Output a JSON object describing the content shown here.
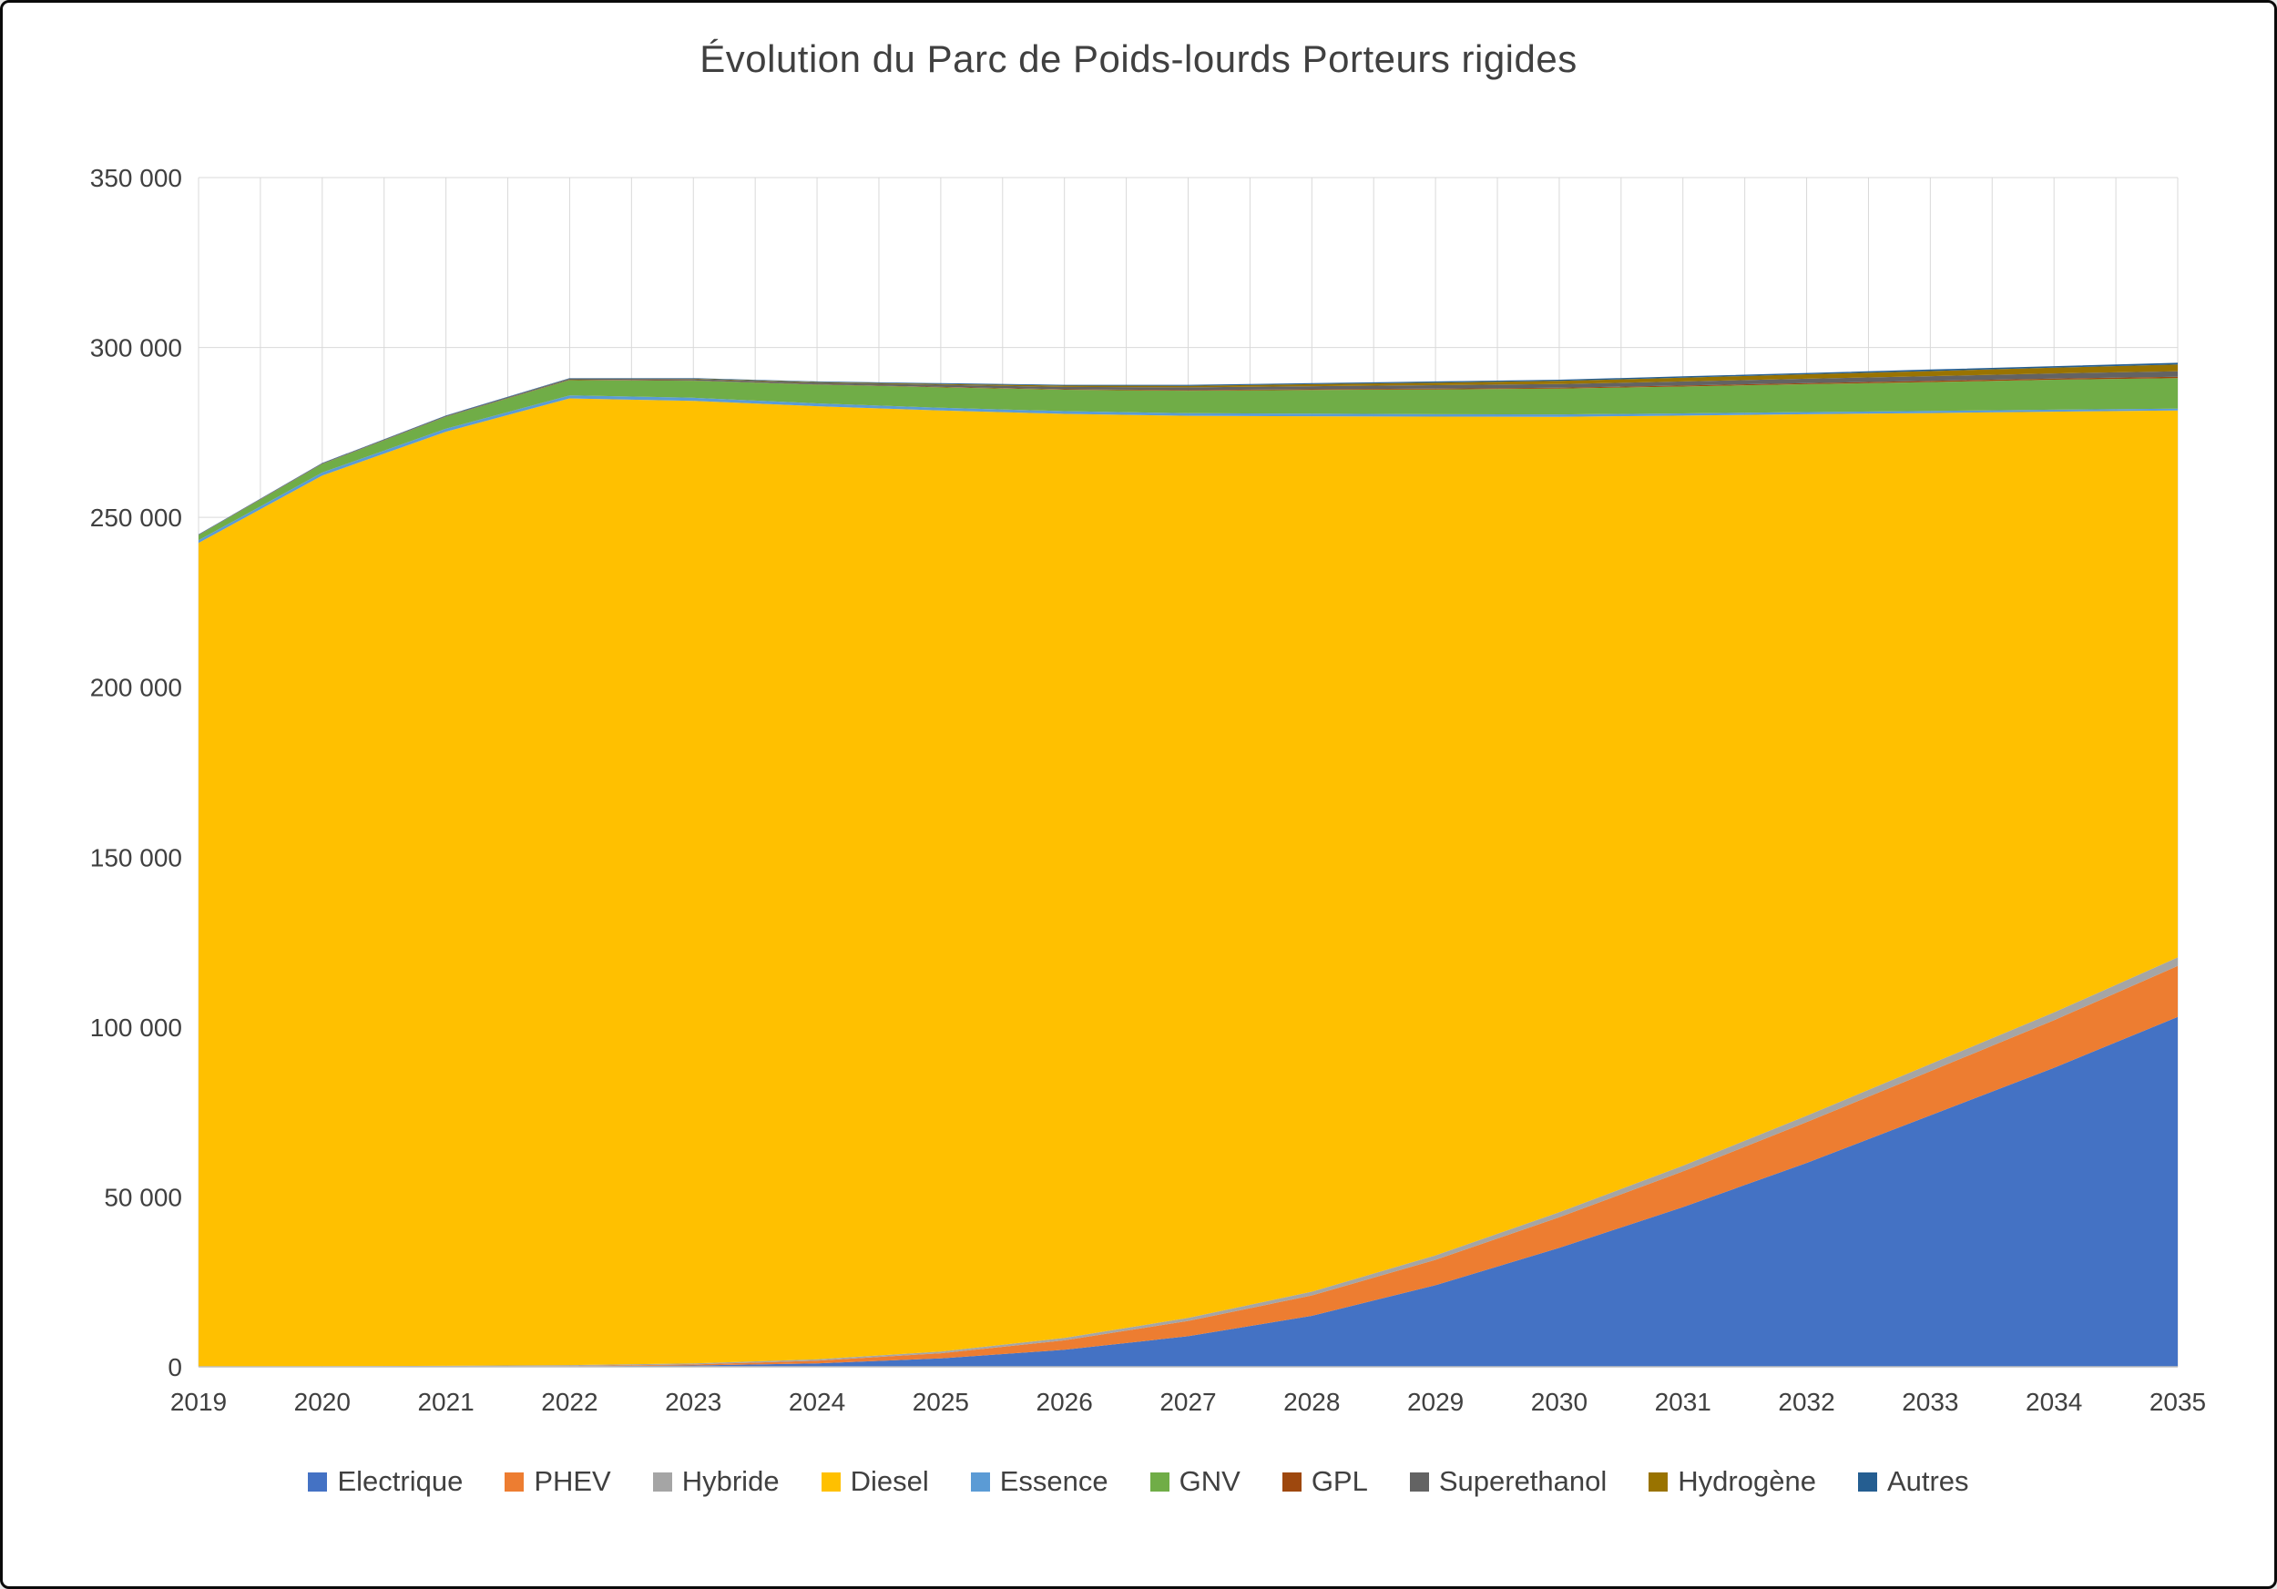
{
  "title": "Évolution du Parc de Poids-lourds Porteurs rigides",
  "chart_data": {
    "type": "area",
    "stacked": true,
    "title": "Évolution du Parc de Poids-lourds Porteurs rigides",
    "xlabel": "",
    "ylabel": "",
    "ylim": [
      0,
      350000
    ],
    "ytick_step": 50000,
    "ytick_labels": [
      "0",
      "50 000",
      "100 000",
      "150 000",
      "200 000",
      "250 000",
      "300 000",
      "350 000"
    ],
    "grid": true,
    "legend_position": "bottom",
    "x": [
      2019,
      2020,
      2021,
      2022,
      2023,
      2024,
      2025,
      2026,
      2027,
      2028,
      2029,
      2030,
      2031,
      2032,
      2033,
      2034,
      2035
    ],
    "series": [
      {
        "name": "Electrique",
        "color": "#4472C4",
        "values": [
          0,
          0,
          50,
          150,
          400,
          1000,
          2500,
          5000,
          9000,
          15000,
          24000,
          35000,
          47000,
          60000,
          74000,
          88000,
          103000
        ]
      },
      {
        "name": "PHEV",
        "color": "#ED7D31",
        "values": [
          0,
          0,
          50,
          100,
          300,
          800,
          1500,
          2800,
          4500,
          6000,
          7500,
          9000,
          10500,
          12000,
          13000,
          14000,
          15000
        ]
      },
      {
        "name": "Hybride",
        "color": "#A5A5A5",
        "values": [
          100,
          150,
          200,
          250,
          300,
          400,
          500,
          700,
          900,
          1100,
          1300,
          1500,
          1700,
          1900,
          2100,
          2300,
          2500
        ]
      },
      {
        "name": "Diesel",
        "color": "#FFC000",
        "values": [
          242350,
          262150,
          274900,
          284500,
          283300,
          280500,
          276950,
          271950,
          265500,
          257650,
          246850,
          234100,
          220750,
          206450,
          191600,
          176800,
          160950
        ]
      },
      {
        "name": "Essence",
        "color": "#5B9BD5",
        "values": [
          800,
          900,
          900,
          900,
          900,
          850,
          800,
          800,
          750,
          750,
          700,
          700,
          650,
          650,
          600,
          600,
          550
        ]
      },
      {
        "name": "GNV",
        "color": "#70AD47",
        "values": [
          1500,
          2500,
          3500,
          4500,
          5000,
          5500,
          6000,
          6300,
          6600,
          7000,
          7300,
          7600,
          7900,
          8200,
          8500,
          8800,
          9000
        ]
      },
      {
        "name": "GPL",
        "color": "#9E480E",
        "values": [
          50,
          50,
          50,
          100,
          100,
          100,
          150,
          150,
          200,
          200,
          250,
          250,
          300,
          300,
          350,
          350,
          400
        ]
      },
      {
        "name": "Superethanol",
        "color": "#636363",
        "values": [
          100,
          150,
          200,
          300,
          400,
          500,
          600,
          700,
          800,
          900,
          1000,
          1100,
          1200,
          1300,
          1400,
          1500,
          1600
        ]
      },
      {
        "name": "Hydrogène",
        "color": "#997300",
        "values": [
          0,
          0,
          0,
          50,
          100,
          150,
          250,
          350,
          450,
          600,
          750,
          900,
          1100,
          1300,
          1500,
          1700,
          2000
        ]
      },
      {
        "name": "Autres",
        "color": "#255E91",
        "values": [
          100,
          100,
          150,
          150,
          200,
          200,
          250,
          250,
          300,
          300,
          350,
          350,
          400,
          400,
          450,
          450,
          500
        ]
      }
    ],
    "axis_colors": {
      "grid": "#D9D9D9",
      "axis_line": "#BFBFBF",
      "tick_text": "#404040"
    }
  }
}
